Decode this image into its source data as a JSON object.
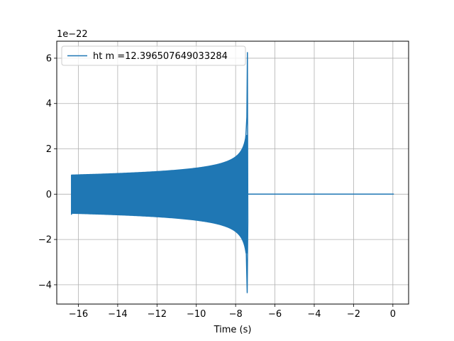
{
  "chart_data": {
    "type": "line",
    "title": "",
    "xlabel": "Time (s)",
    "ylabel": "",
    "y_offset_text": "1e−22",
    "xlim": [
      -17.1,
      0.8
    ],
    "ylim": [
      -4.85,
      6.75
    ],
    "xticks": [
      -16,
      -14,
      -12,
      -10,
      -8,
      -6,
      -4,
      -2,
      0
    ],
    "xtick_labels": [
      "−16",
      "−14",
      "−12",
      "−10",
      "−8",
      "−6",
      "−4",
      "−2",
      "0"
    ],
    "yticks": [
      -4,
      -2,
      0,
      2,
      4,
      6
    ],
    "ytick_labels": [
      "−4",
      "−2",
      "0",
      "2",
      "4",
      "6"
    ],
    "grid": true,
    "legend_position": "top-left",
    "series": [
      {
        "name": "ht m =12.396507649033284",
        "color": "#1f77b4",
        "signal_start": -16.35,
        "merger_time": -7.4,
        "end_time": 0.05,
        "start_amplitude": 0.85,
        "peak_max": 6.25,
        "peak_min": -4.35,
        "post_merger_value": 0.0
      }
    ]
  }
}
